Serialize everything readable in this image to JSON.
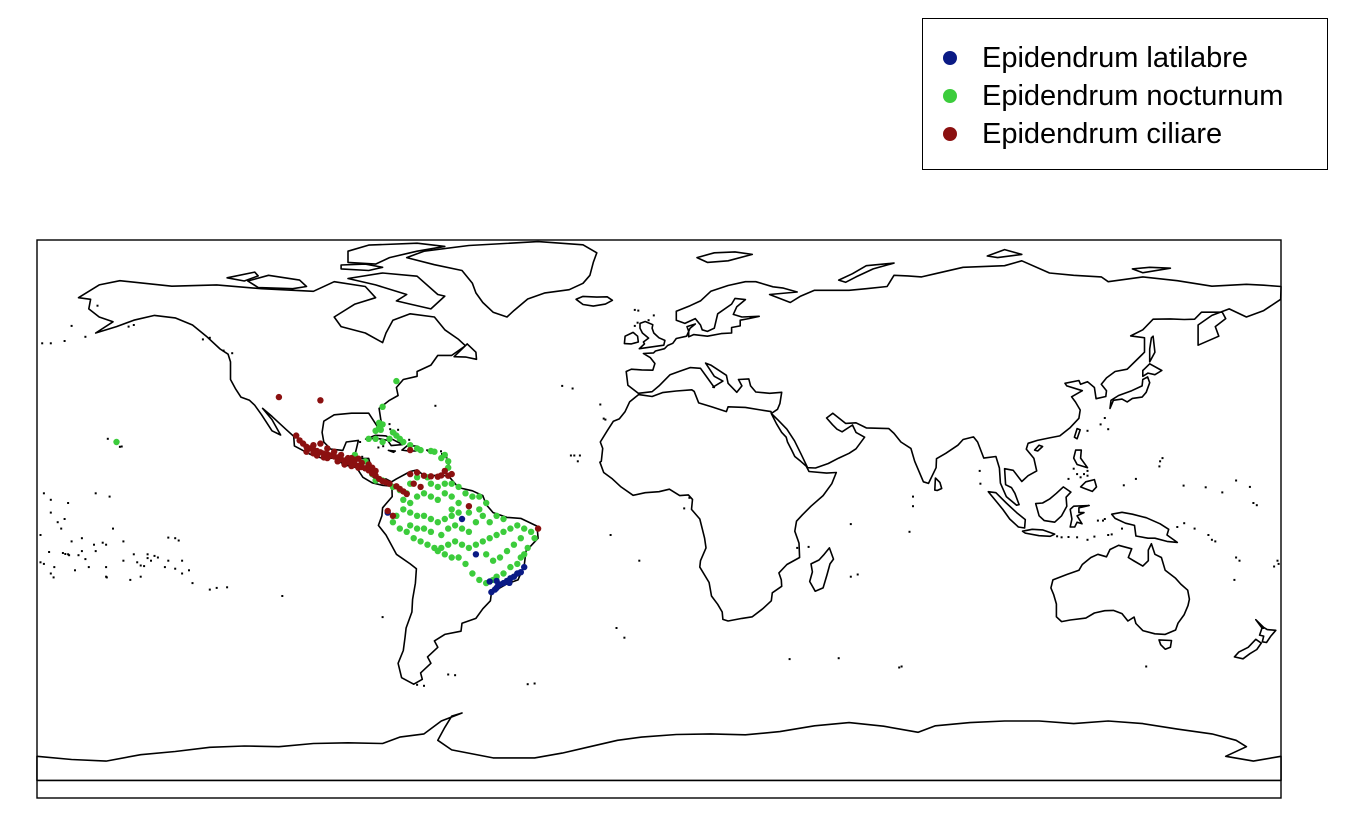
{
  "map": {
    "type": "world-occurrence-map",
    "projection": "equirectangular",
    "extent": {
      "lon": [
        -180,
        180
      ],
      "lat": [
        -90,
        84
      ]
    },
    "outline_color": "#000000",
    "land_fill": "#ffffff"
  },
  "legend": {
    "placement": "top-right",
    "entries": [
      {
        "label": "Epidendrum latilabre",
        "color": "#0a1a85"
      },
      {
        "label": "Epidendrum nocturnum",
        "color": "#3ccc3c"
      },
      {
        "label": "Epidendrum ciliare",
        "color": "#8b1010"
      }
    ]
  },
  "chart_data": {
    "type": "scatter",
    "xlabel": "",
    "ylabel": "",
    "xlim": [
      -180,
      180
    ],
    "ylim": [
      -90,
      84
    ],
    "series": [
      {
        "name": "Epidendrum latilabre",
        "color": "#0a1a85",
        "points": [
          [
            -41,
            -20
          ],
          [
            -40,
            -19.6
          ],
          [
            -42,
            -21
          ],
          [
            -43,
            -21.5
          ],
          [
            -44,
            -22.3
          ],
          [
            -45,
            -23
          ],
          [
            -46,
            -23.4
          ],
          [
            -46.5,
            -23.6
          ],
          [
            -47,
            -24.5
          ],
          [
            -47.5,
            -25
          ],
          [
            -48.5,
            -25.8
          ],
          [
            -49,
            -22.5
          ],
          [
            -47,
            -22.3
          ],
          [
            -43.3,
            -22.9
          ],
          [
            -39,
            -18
          ],
          [
            -53,
            -14
          ],
          [
            -57,
            -3
          ],
          [
            -78.5,
            -1
          ]
        ]
      },
      {
        "name": "Epidendrum nocturnum",
        "color": "#3ccc3c",
        "points": [
          [
            -157,
            21
          ],
          [
            -76,
            40
          ],
          [
            -80,
            32
          ],
          [
            -81,
            27
          ],
          [
            -81,
            25.5
          ],
          [
            -80,
            26.5
          ],
          [
            -82,
            24.5
          ],
          [
            -80.5,
            24.8
          ],
          [
            -77,
            24
          ],
          [
            -76,
            23
          ],
          [
            -75,
            22
          ],
          [
            -74,
            21
          ],
          [
            -72,
            20
          ],
          [
            -70,
            19
          ],
          [
            -69,
            18.5
          ],
          [
            -66,
            18.2
          ],
          [
            -65,
            18
          ],
          [
            -62,
            17
          ],
          [
            -61,
            15
          ],
          [
            -61,
            13
          ],
          [
            -63,
            16
          ],
          [
            -78,
            22
          ],
          [
            -80,
            21
          ],
          [
            -82,
            22
          ],
          [
            -84,
            22
          ],
          [
            -88,
            17
          ],
          [
            -85,
            15
          ],
          [
            -84,
            13
          ],
          [
            -83,
            11
          ],
          [
            -82,
            9
          ],
          [
            -80,
            9
          ],
          [
            -77,
            7
          ],
          [
            -75,
            6
          ],
          [
            -73,
            5
          ],
          [
            -72,
            8
          ],
          [
            -70,
            10
          ],
          [
            -67,
            10
          ],
          [
            -66,
            8
          ],
          [
            -64,
            7
          ],
          [
            -62,
            8
          ],
          [
            -60,
            8
          ],
          [
            -58,
            7
          ],
          [
            -56,
            5
          ],
          [
            -54,
            4
          ],
          [
            -52,
            4
          ],
          [
            -50,
            2
          ],
          [
            -52,
            0
          ],
          [
            -55,
            -1
          ],
          [
            -58,
            -1
          ],
          [
            -60,
            -2
          ],
          [
            -62,
            -3
          ],
          [
            -64,
            -4
          ],
          [
            -66,
            -3
          ],
          [
            -68,
            -2
          ],
          [
            -70,
            -2
          ],
          [
            -72,
            -1
          ],
          [
            -74,
            0
          ],
          [
            -76,
            -2
          ],
          [
            -77,
            -4
          ],
          [
            -75,
            -6
          ],
          [
            -73,
            -7
          ],
          [
            -71,
            -9
          ],
          [
            -69,
            -10
          ],
          [
            -67,
            -11
          ],
          [
            -65,
            -12
          ],
          [
            -63,
            -12
          ],
          [
            -61,
            -11
          ],
          [
            -59,
            -10
          ],
          [
            -57,
            -11
          ],
          [
            -55,
            -12
          ],
          [
            -53,
            -11
          ],
          [
            -51,
            -10
          ],
          [
            -49,
            -9
          ],
          [
            -47,
            -8
          ],
          [
            -45,
            -7
          ],
          [
            -43,
            -6
          ],
          [
            -41,
            -5
          ],
          [
            -39,
            -6
          ],
          [
            -37,
            -7
          ],
          [
            -36,
            -9
          ],
          [
            -38,
            -12
          ],
          [
            -39,
            -14
          ],
          [
            -40,
            -15
          ],
          [
            -41,
            -17
          ],
          [
            -43,
            -18
          ],
          [
            -45,
            -20
          ],
          [
            -47,
            -21
          ],
          [
            -48,
            -22
          ],
          [
            -50,
            -23
          ],
          [
            -52,
            -22
          ],
          [
            -54,
            -20
          ],
          [
            -56,
            -17
          ],
          [
            -58,
            -15
          ],
          [
            -60,
            -15
          ],
          [
            -62,
            -14
          ],
          [
            -64,
            -13
          ],
          [
            -61,
            -6
          ],
          [
            -63,
            -8
          ],
          [
            -59,
            -5
          ],
          [
            -57,
            -6
          ],
          [
            -55,
            -7
          ],
          [
            -53,
            -4
          ],
          [
            -51,
            -2
          ],
          [
            -49,
            -4
          ],
          [
            -47,
            -2
          ],
          [
            -45,
            -3
          ],
          [
            -70,
            4
          ],
          [
            -68,
            5
          ],
          [
            -66,
            4
          ],
          [
            -64,
            3
          ],
          [
            -62,
            5
          ],
          [
            -60,
            4
          ],
          [
            -58,
            2
          ],
          [
            -72,
            2
          ],
          [
            -74,
            3
          ],
          [
            -60,
            0
          ],
          [
            -50,
            -14
          ],
          [
            -48,
            -16
          ],
          [
            -46,
            -15
          ],
          [
            -44,
            -13
          ],
          [
            -42,
            -11
          ],
          [
            -40,
            -9
          ],
          [
            -66,
            -7
          ],
          [
            -68,
            -6
          ],
          [
            -70,
            -6
          ],
          [
            -72,
            -5
          ]
        ]
      },
      {
        "name": "Epidendrum ciliare",
        "color": "#8b1010",
        "points": [
          [
            -110,
            35
          ],
          [
            -98,
            34
          ],
          [
            -105,
            23
          ],
          [
            -104,
            21.5
          ],
          [
            -103,
            20.5
          ],
          [
            -102,
            19.5
          ],
          [
            -101,
            19
          ],
          [
            -100,
            18.6
          ],
          [
            -99,
            18.2
          ],
          [
            -98,
            17.8
          ],
          [
            -97,
            17.4
          ],
          [
            -96,
            17.2
          ],
          [
            -95,
            16.8
          ],
          [
            -94,
            16.5
          ],
          [
            -93,
            16.2
          ],
          [
            -92,
            15.6
          ],
          [
            -91,
            15.2
          ],
          [
            -90,
            14.8
          ],
          [
            -89,
            14.4
          ],
          [
            -88,
            14
          ],
          [
            -87,
            13.6
          ],
          [
            -86,
            13.2
          ],
          [
            -85,
            12.8
          ],
          [
            -84,
            12.2
          ],
          [
            -83,
            11.2
          ],
          [
            -82,
            10.5
          ],
          [
            -81,
            9.5
          ],
          [
            -80,
            8.8
          ],
          [
            -79,
            8.4
          ],
          [
            -78,
            8
          ],
          [
            -76,
            7.2
          ],
          [
            -75,
            6.4
          ],
          [
            -74,
            5.6
          ],
          [
            -73,
            4.8
          ],
          [
            -100,
            20
          ],
          [
            -98,
            20.5
          ],
          [
            -96,
            19
          ],
          [
            -94,
            18
          ],
          [
            -92,
            17
          ],
          [
            -90,
            16
          ],
          [
            -88,
            15.5
          ],
          [
            -86,
            14.5
          ],
          [
            -84,
            14
          ],
          [
            -82,
            12
          ],
          [
            -96,
            16
          ],
          [
            -93,
            15
          ],
          [
            -100,
            17.5
          ],
          [
            -99,
            16.8
          ],
          [
            -97,
            16.2
          ],
          [
            -102,
            18
          ],
          [
            -89,
            16
          ],
          [
            -87,
            15.8
          ],
          [
            -83,
            13
          ],
          [
            -87,
            13
          ],
          [
            -89,
            13.5
          ],
          [
            -91,
            14
          ],
          [
            -60,
            11
          ],
          [
            -61,
            10.5
          ],
          [
            -63,
            10.6
          ],
          [
            -62,
            12
          ],
          [
            -64,
            10.2
          ],
          [
            -66,
            10.3
          ],
          [
            -68,
            10.5
          ],
          [
            -70,
            11.5
          ],
          [
            -72,
            11
          ],
          [
            -71,
            8
          ],
          [
            -69,
            7
          ],
          [
            -35,
            -6
          ],
          [
            -55,
            1
          ],
          [
            -78.5,
            -0.5
          ],
          [
            -77,
            -2
          ],
          [
            -72,
            18.5
          ]
        ]
      }
    ]
  }
}
